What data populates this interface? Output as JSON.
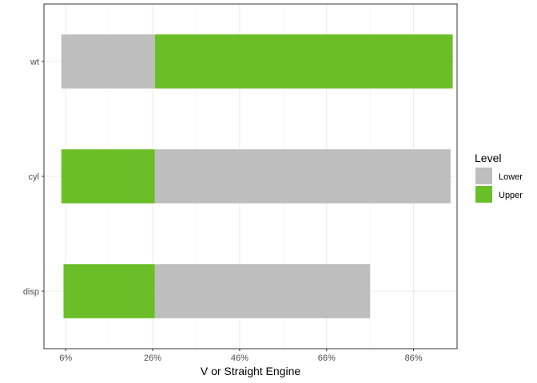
{
  "chart_data": {
    "type": "bar",
    "orientation": "horizontal",
    "stacked": true,
    "xlabel": "V or Straight Engine",
    "ylabel": "",
    "xlim": [
      1,
      96
    ],
    "xticks": [
      6,
      26,
      46,
      66,
      86
    ],
    "xtick_labels": [
      "6%",
      "26%",
      "46%",
      "66%",
      "86%"
    ],
    "categories": [
      "wt",
      "cyl",
      "disp"
    ],
    "series": [
      {
        "name": "Lower",
        "color": "#bebebe",
        "segments": [
          [
            5,
            26.5
          ],
          [
            26.5,
            94.5
          ],
          [
            26.5,
            76
          ]
        ]
      },
      {
        "name": "Upper",
        "color": "#6abe28",
        "segments": [
          [
            26.5,
            95
          ],
          [
            5,
            26.5
          ],
          [
            5.5,
            26.5
          ]
        ]
      }
    ],
    "grid": true,
    "legend": {
      "title": "Level",
      "position": "right",
      "entries": [
        "Lower",
        "Upper"
      ]
    }
  }
}
